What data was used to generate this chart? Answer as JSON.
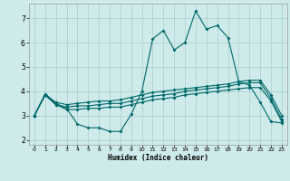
{
  "xlabel": "Humidex (Indice chaleur)",
  "bg_color": "#ceeaea",
  "grid_color": "#aacece",
  "line_color": "#006868",
  "xlim": [
    -0.5,
    23.5
  ],
  "ylim": [
    1.8,
    7.6
  ],
  "yticks": [
    2,
    3,
    4,
    5,
    6,
    7
  ],
  "xticks": [
    0,
    1,
    2,
    3,
    4,
    5,
    6,
    7,
    8,
    9,
    10,
    11,
    12,
    13,
    14,
    15,
    16,
    17,
    18,
    19,
    20,
    21,
    22,
    23
  ],
  "line1_x": [
    0,
    1,
    2,
    3,
    4,
    5,
    6,
    7,
    8,
    9,
    10,
    11,
    12,
    13,
    14,
    15,
    16,
    17,
    18,
    19,
    20,
    21,
    22,
    23
  ],
  "line1_y": [
    3.0,
    3.9,
    3.5,
    3.3,
    2.65,
    2.5,
    2.5,
    2.35,
    2.35,
    3.05,
    4.0,
    6.15,
    6.5,
    5.7,
    6.0,
    7.3,
    6.55,
    6.7,
    6.2,
    4.4,
    4.25,
    3.55,
    2.75,
    2.7
  ],
  "line2_x": [
    0,
    1,
    2,
    3,
    4,
    5,
    6,
    7,
    8,
    9,
    10,
    11,
    12,
    13,
    14,
    15,
    16,
    17,
    18,
    19,
    20,
    21,
    22,
    23
  ],
  "line2_y": [
    3.0,
    3.85,
    3.45,
    3.25,
    3.25,
    3.3,
    3.3,
    3.35,
    3.35,
    3.45,
    3.55,
    3.65,
    3.7,
    3.75,
    3.85,
    3.9,
    3.95,
    4.0,
    4.05,
    4.1,
    4.15,
    4.15,
    3.6,
    2.75
  ],
  "line3_x": [
    0,
    1,
    2,
    3,
    4,
    5,
    6,
    7,
    8,
    9,
    10,
    11,
    12,
    13,
    14,
    15,
    16,
    17,
    18,
    19,
    20,
    21,
    22,
    23
  ],
  "line3_y": [
    3.0,
    3.85,
    3.45,
    3.35,
    3.4,
    3.4,
    3.45,
    3.5,
    3.5,
    3.6,
    3.7,
    3.8,
    3.85,
    3.9,
    4.0,
    4.05,
    4.1,
    4.15,
    4.2,
    4.3,
    4.35,
    4.35,
    3.7,
    2.85
  ],
  "line4_x": [
    0,
    1,
    2,
    3,
    4,
    5,
    6,
    7,
    8,
    9,
    10,
    11,
    12,
    13,
    14,
    15,
    16,
    17,
    18,
    19,
    20,
    21,
    22,
    23
  ],
  "line4_y": [
    3.0,
    3.85,
    3.55,
    3.45,
    3.5,
    3.55,
    3.6,
    3.6,
    3.65,
    3.75,
    3.85,
    3.95,
    4.0,
    4.05,
    4.1,
    4.15,
    4.2,
    4.25,
    4.3,
    4.4,
    4.45,
    4.45,
    3.85,
    3.0
  ]
}
